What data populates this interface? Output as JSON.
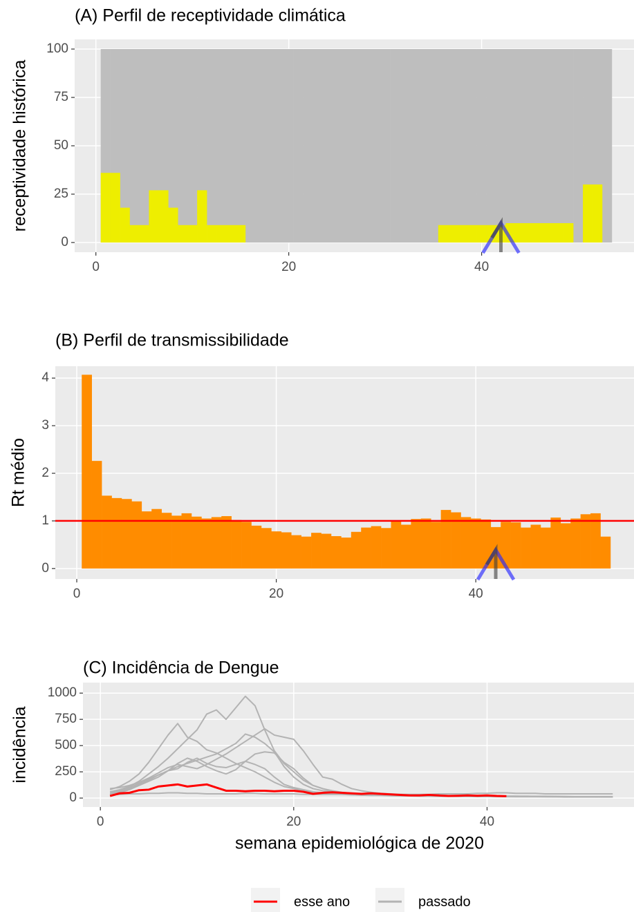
{
  "chart_data": [
    {
      "type": "bar",
      "title": "(A) Perfil de receptividade climática",
      "y_label": "receptividade histórica",
      "x": [
        1,
        2,
        3,
        4,
        5,
        6,
        7,
        8,
        9,
        10,
        11,
        12,
        13,
        14,
        15,
        16,
        17,
        18,
        19,
        20,
        21,
        22,
        23,
        24,
        25,
        26,
        27,
        28,
        29,
        30,
        31,
        32,
        33,
        34,
        35,
        36,
        37,
        38,
        39,
        40,
        41,
        42,
        43,
        44,
        45,
        46,
        47,
        48,
        49,
        50,
        51,
        52,
        53
      ],
      "series": [
        {
          "color": "#bebebe",
          "values": [
            100,
            100,
            100,
            100,
            100,
            100,
            100,
            100,
            100,
            100,
            100,
            100,
            100,
            100,
            100,
            100,
            100,
            100,
            100,
            100,
            100,
            100,
            100,
            100,
            100,
            100,
            100,
            100,
            100,
            100,
            100,
            100,
            100,
            100,
            100,
            100,
            100,
            100,
            100,
            100,
            100,
            100,
            100,
            100,
            100,
            100,
            100,
            100,
            100,
            100,
            100,
            100,
            100
          ]
        },
        {
          "color": "#eeee00",
          "values": [
            36,
            36,
            18,
            9,
            9,
            27,
            27,
            18,
            9,
            9,
            27,
            9,
            9,
            9,
            9,
            0,
            0,
            0,
            0,
            0,
            0,
            0,
            0,
            0,
            0,
            0,
            0,
            0,
            0,
            0,
            0,
            0,
            0,
            0,
            0,
            9,
            9,
            9,
            9,
            9,
            9,
            9,
            10,
            10,
            10,
            10,
            10,
            10,
            10,
            0,
            30,
            30,
            0
          ]
        }
      ],
      "marker_week": 42,
      "xlim": [
        -2.2,
        55.8
      ],
      "xticks": [
        0,
        20,
        40
      ],
      "ylim": [
        -5,
        105
      ],
      "yticks": [
        0,
        25,
        50,
        75,
        100
      ],
      "grid": true
    },
    {
      "type": "bar",
      "title": "(B) Perfil de transmissibilidade",
      "y_label": "Rt médio",
      "x": [
        1,
        2,
        3,
        4,
        5,
        6,
        7,
        8,
        9,
        10,
        11,
        12,
        13,
        14,
        15,
        16,
        17,
        18,
        19,
        20,
        21,
        22,
        23,
        24,
        25,
        26,
        27,
        28,
        29,
        30,
        31,
        32,
        33,
        34,
        35,
        36,
        37,
        38,
        39,
        40,
        41,
        42,
        43,
        44,
        45,
        46,
        47,
        48,
        49,
        50,
        51,
        52,
        53
      ],
      "series": [
        {
          "color": "#ff8c00",
          "values": [
            4.07,
            2.26,
            1.53,
            1.48,
            1.46,
            1.41,
            1.2,
            1.25,
            1.17,
            1.11,
            1.16,
            1.09,
            1.05,
            1.08,
            1.1,
            1.02,
            0.98,
            0.9,
            0.85,
            0.78,
            0.76,
            0.7,
            0.67,
            0.75,
            0.73,
            0.68,
            0.65,
            0.77,
            0.86,
            0.89,
            0.85,
            0.99,
            0.92,
            1.04,
            1.05,
            0.98,
            1.23,
            1.18,
            1.08,
            1.05,
            1.03,
            0.87,
            0.98,
            0.97,
            0.86,
            0.92,
            0.86,
            1.07,
            0.95,
            1.05,
            1.14,
            1.16,
            0.67
          ]
        }
      ],
      "hline": 1,
      "hline_color": "#ff0000",
      "marker_week": 42,
      "xlim": [
        -2.15,
        55.86
      ],
      "xticks": [
        0,
        20,
        40
      ],
      "ylim": [
        -0.22,
        4.25
      ],
      "yticks": [
        0,
        1,
        2,
        3,
        4
      ],
      "grid": true
    },
    {
      "type": "line",
      "title": "(C) Incidência de Dengue",
      "y_label": "incidência",
      "x_label": "semana epidemiológica de 2020",
      "x": [
        1,
        2,
        3,
        4,
        5,
        6,
        7,
        8,
        9,
        10,
        11,
        12,
        13,
        14,
        15,
        16,
        17,
        18,
        19,
        20,
        21,
        22,
        23,
        24,
        25,
        26,
        27,
        28,
        29,
        30,
        31,
        32,
        33,
        34,
        35,
        36,
        37,
        38,
        39,
        40,
        41,
        42,
        43,
        44,
        45,
        46,
        47,
        48,
        49,
        50,
        51,
        52,
        53
      ],
      "series": [
        {
          "name": "esse ano",
          "color": "#ff0000",
          "values": [
            20,
            45,
            50,
            75,
            80,
            110,
            120,
            130,
            110,
            120,
            130,
            100,
            70,
            70,
            65,
            70,
            70,
            65,
            70,
            70,
            60,
            40,
            50,
            55,
            50,
            45,
            40,
            45,
            40,
            35,
            30,
            25,
            25,
            30,
            25,
            20,
            22,
            25,
            22,
            25,
            20,
            18,
            null,
            null,
            null,
            null,
            null,
            null,
            null,
            null,
            null,
            null,
            null
          ]
        },
        {
          "name": "passado",
          "color": "#b3b3b3",
          "lines": [
            [
              60,
              80,
              110,
              160,
              230,
              300,
              380,
              470,
              560,
              650,
              800,
              840,
              750,
              860,
              970,
              880,
              650,
              450,
              330,
              250,
              170,
              120,
              90,
              70,
              55,
              45,
              40,
              35,
              30,
              30,
              28,
              26,
              25,
              25,
              24,
              22,
              22,
              20,
              20,
              20,
              18,
              18,
              18,
              16,
              16,
              15,
              15,
              14,
              14,
              13,
              13,
              12,
              12
            ],
            [
              80,
              110,
              160,
              230,
              340,
              470,
              600,
              710,
              580,
              540,
              460,
              430,
              380,
              330,
              290,
              250,
              200,
              150,
              110,
              90,
              70,
              55,
              45,
              40,
              35,
              30,
              28,
              25,
              25,
              22,
              20,
              20,
              18,
              18,
              16,
              16,
              15,
              15,
              14,
              14,
              13,
              13,
              12,
              12,
              12,
              11,
              11,
              10,
              10,
              10,
              10,
              10,
              10
            ],
            [
              90,
              100,
              120,
              150,
              190,
              240,
              290,
              320,
              300,
              280,
              320,
              370,
              420,
              480,
              540,
              600,
              660,
              600,
              580,
              560,
              450,
              320,
              200,
              180,
              130,
              90,
              70,
              55,
              45,
              40,
              35,
              30,
              28,
              26,
              25,
              24,
              22,
              22,
              20,
              20,
              20,
              18,
              18,
              18,
              16,
              16,
              15,
              15,
              14,
              14,
              13,
              13,
              12
            ],
            [
              50,
              70,
              100,
              140,
              180,
              220,
              260,
              300,
              330,
              360,
              390,
              420,
              470,
              520,
              610,
              580,
              520,
              440,
              300,
              200,
              130,
              90,
              70,
              55,
              45,
              40,
              35,
              30,
              28,
              25,
              25,
              24,
              22,
              22,
              20,
              20,
              20,
              18,
              18,
              18,
              16,
              16,
              15,
              15,
              14,
              14,
              13,
              13,
              12,
              12,
              12,
              11,
              11
            ],
            [
              40,
              60,
              90,
              130,
              170,
              220,
              260,
              280,
              340,
              380,
              330,
              300,
              290,
              320,
              350,
              420,
              440,
              430,
              340,
              280,
              190,
              120,
              90,
              60,
              50,
              45,
              40,
              35,
              30,
              30,
              28,
              26,
              25,
              24,
              22,
              22,
              20,
              20,
              20,
              18,
              18,
              18,
              16,
              16,
              15,
              15,
              14,
              14,
              13,
              13,
              12,
              12,
              12
            ],
            [
              30,
              50,
              80,
              120,
              160,
              200,
              260,
              330,
              380,
              350,
              300,
              260,
              230,
              270,
              350,
              320,
              280,
              200,
              130,
              100,
              80,
              60,
              50,
              45,
              40,
              35,
              30,
              30,
              28,
              26,
              25,
              24,
              22,
              22,
              20,
              20,
              20,
              18,
              18,
              18,
              16,
              16,
              15,
              15,
              14,
              14,
              13,
              13,
              12,
              12,
              12,
              11,
              11
            ],
            [
              30,
              35,
              40,
              40,
              45,
              45,
              50,
              50,
              45,
              45,
              40,
              40,
              40,
              40,
              45,
              45,
              40,
              40,
              40,
              40,
              35,
              35,
              35,
              35,
              35,
              35,
              35,
              35,
              35,
              35,
              35,
              35,
              35,
              35,
              40,
              40,
              40,
              40,
              45,
              45,
              50,
              50,
              45,
              45,
              45,
              40,
              40,
              40,
              40,
              40,
              40,
              40,
              40
            ]
          ]
        }
      ],
      "xlim": [
        -1.8,
        55.2
      ],
      "xticks": [
        0,
        20,
        40
      ],
      "ylim": [
        -85,
        1100
      ],
      "yticks": [
        0,
        250,
        500,
        750,
        1000
      ],
      "grid": true
    }
  ]
}
